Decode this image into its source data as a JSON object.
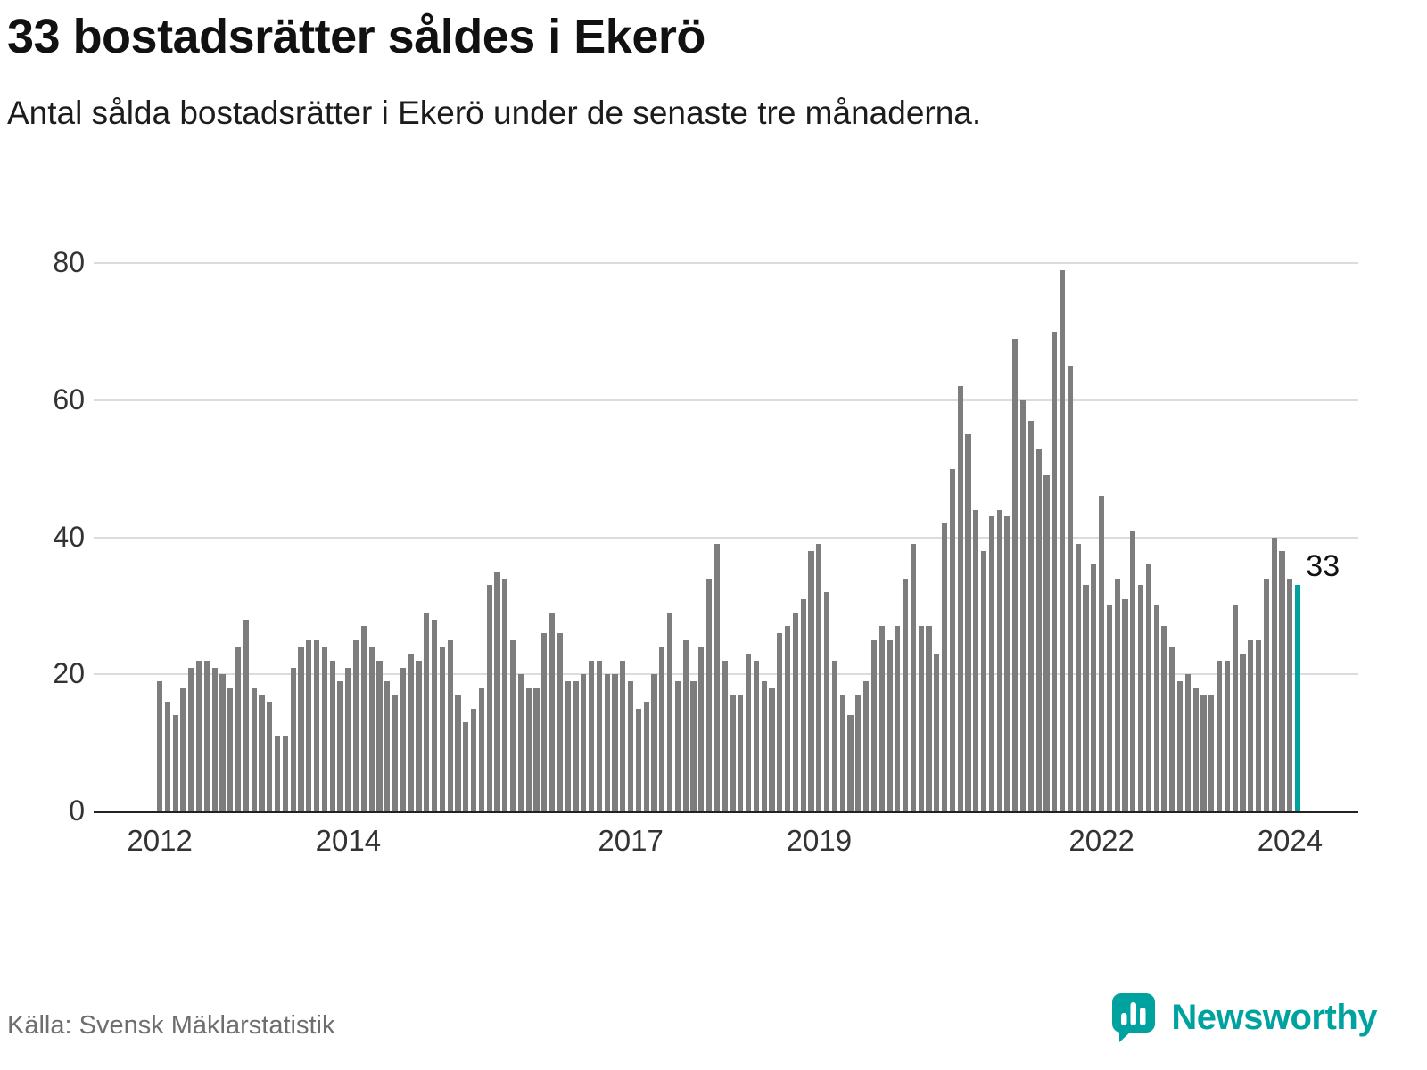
{
  "header": {
    "title": "33 bostadsrätter såldes i Ekerö",
    "subtitle": "Antal sålda bostadsrätter i Ekerö under de senaste tre månaderna."
  },
  "footer": {
    "source": "Källa: Svensk Mäklarstatistik",
    "brand": "Newsworthy"
  },
  "chart_data": {
    "type": "bar",
    "title": "33 bostadsrätter såldes i Ekerö",
    "subtitle": "Antal sålda bostadsrätter i Ekerö under de senaste tre månaderna.",
    "frequency": "monthly",
    "period": {
      "start": "2012",
      "end": "2024"
    },
    "values": [
      19,
      16,
      14,
      18,
      21,
      22,
      22,
      21,
      20,
      18,
      24,
      28,
      18,
      17,
      16,
      11,
      11,
      21,
      24,
      25,
      25,
      24,
      22,
      19,
      21,
      25,
      27,
      24,
      22,
      19,
      17,
      21,
      23,
      22,
      29,
      28,
      24,
      25,
      17,
      13,
      15,
      18,
      33,
      35,
      34,
      25,
      20,
      18,
      18,
      26,
      29,
      26,
      19,
      19,
      20,
      22,
      22,
      20,
      20,
      22,
      19,
      15,
      16,
      20,
      24,
      29,
      19,
      25,
      19,
      24,
      34,
      39,
      22,
      17,
      17,
      23,
      22,
      19,
      18,
      26,
      27,
      29,
      31,
      38,
      39,
      32,
      22,
      17,
      14,
      17,
      19,
      25,
      27,
      25,
      27,
      34,
      39,
      27,
      27,
      23,
      42,
      50,
      62,
      55,
      44,
      38,
      43,
      44,
      43,
      69,
      60,
      57,
      53,
      49,
      70,
      79,
      65,
      39,
      33,
      36,
      46,
      30,
      34,
      31,
      41,
      33,
      36,
      30,
      27,
      24,
      19,
      20,
      18,
      17,
      17,
      22,
      22,
      30,
      23,
      25,
      25,
      34,
      40,
      38,
      34,
      33
    ],
    "highlight": {
      "index": 145,
      "value": 33,
      "label": "33"
    },
    "ylim": [
      0,
      80
    ],
    "yticks": [
      0,
      20,
      40,
      60,
      80
    ],
    "xticks": [
      {
        "label": "2012",
        "index": 0
      },
      {
        "label": "2014",
        "index": 24
      },
      {
        "label": "2017",
        "index": 60
      },
      {
        "label": "2019",
        "index": 84
      },
      {
        "label": "2022",
        "index": 120
      },
      {
        "label": "2024",
        "index": 144
      }
    ],
    "grid": "horizontal",
    "legend": "none",
    "colors": {
      "bar": "#7d7d7d",
      "highlight": "#00a2a0",
      "gridline": "#dcdcdc",
      "axis": "#222222",
      "brand_teal": "#00a2a0"
    }
  }
}
